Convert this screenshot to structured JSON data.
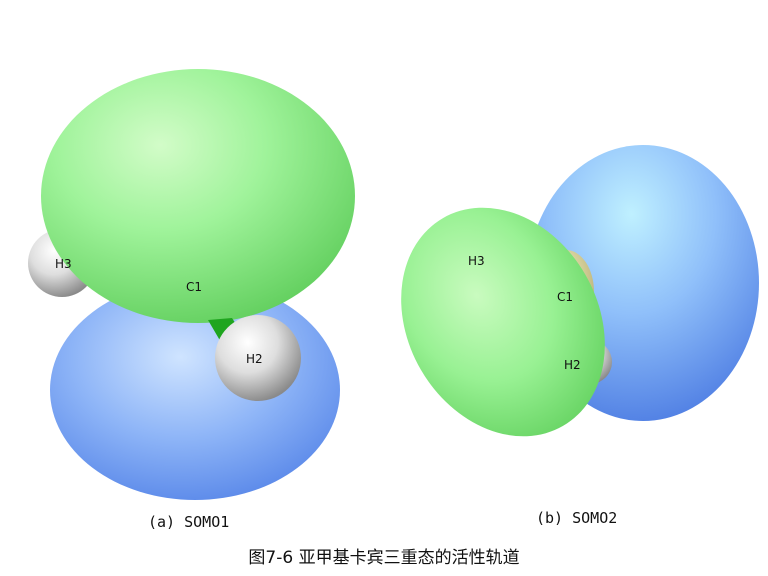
{
  "panel_a": {
    "caption": "(a) SOMO1",
    "atoms": {
      "h3": "H3",
      "c1": "C1",
      "h2": "H2"
    }
  },
  "panel_b": {
    "caption": "(b) SOMO2",
    "atoms": {
      "h3": "H3",
      "c1": "C1",
      "h2": "H2"
    }
  },
  "figure_caption": "图7-6 亚甲基卡宾三重态的活性轨道",
  "colors": {
    "positive_lobe": "#8ef58a",
    "negative_lobe": "#7fa8f5",
    "hydrogen": "#d8d8d8",
    "carbon_bond": "#1fa51f",
    "carbon_center_b": "#d9d49a",
    "background": "#ffffff"
  }
}
